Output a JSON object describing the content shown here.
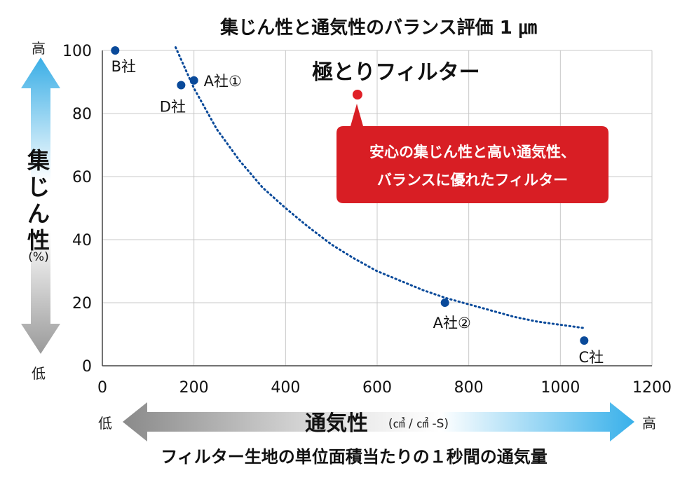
{
  "chart_data": {
    "type": "scatter",
    "title": "集じん性と通気性のバランス評価 1 ㎛",
    "xlabel": "通気性",
    "xunit": "(㎤ / ㎠ -S)",
    "xsubtitle": "フィルター生地の単位面積当たりの１秒間の通気量",
    "ylabel": "集じん性",
    "yunit": "(%)",
    "xlim": [
      0,
      1200
    ],
    "ylim": [
      0,
      100
    ],
    "xticks": [
      0,
      200,
      400,
      600,
      800,
      1000,
      1200
    ],
    "yticks": [
      0,
      20,
      40,
      60,
      80,
      100
    ],
    "grid": true,
    "axis_arrow_labels": {
      "low": "低",
      "high": "高"
    },
    "points": [
      {
        "label": "B社",
        "x": 28,
        "y": 100
      },
      {
        "label": "D社",
        "x": 172,
        "y": 89
      },
      {
        "label": "A社①",
        "x": 200,
        "y": 90.5
      },
      {
        "label": "A社②",
        "x": 748,
        "y": 20
      },
      {
        "label": "C社",
        "x": 1052,
        "y": 8
      }
    ],
    "highlight": {
      "label": "極とりフィルター",
      "x": 557,
      "y": 86,
      "callout": [
        "安心の集じん性と高い通気性、",
        "バランスに優れたフィルター"
      ]
    },
    "trendline": {
      "x": [
        160,
        200,
        250,
        300,
        350,
        400,
        450,
        500,
        550,
        600,
        650,
        700,
        750,
        800,
        850,
        900,
        950,
        1000,
        1050
      ],
      "y": [
        101,
        88,
        75,
        65,
        56.5,
        50,
        44,
        38.5,
        34,
        30,
        27,
        24,
        21.5,
        19.5,
        17.5,
        15.5,
        14,
        13,
        12
      ]
    },
    "colors": {
      "point": "#0a4a9a",
      "highlight": "#e02027",
      "callout": "#d81e24",
      "trend": "#0a4a9a"
    }
  }
}
